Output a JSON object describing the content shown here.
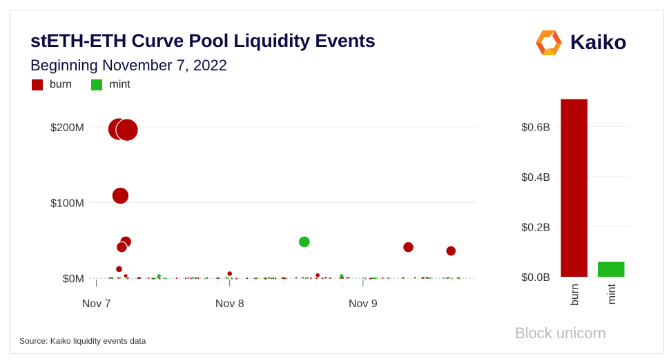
{
  "header": {
    "title": "stETH-ETH Curve Pool Liquidity Events",
    "subtitle": "Beginning November 7,  2022"
  },
  "legend": [
    {
      "label": "burn",
      "color": "#b30000"
    },
    {
      "label": "mint",
      "color": "#1fb81f"
    }
  ],
  "logo": {
    "text": "Kaiko",
    "accent": "#f7921e"
  },
  "source": "Source: Kaiko liquidity events data",
  "watermark": "Block unicorn",
  "chart_data": [
    {
      "type": "scatter",
      "title": "",
      "xlabel": "",
      "ylabel": "",
      "x_ticks": [
        "Nov 7",
        "Nov 8",
        "Nov 9"
      ],
      "y_ticks": [
        "$0M",
        "$100M",
        "$200M"
      ],
      "ylim": [
        0,
        240
      ],
      "xlim": [
        -0.05,
        2.85
      ],
      "grid": "horizontal",
      "series": [
        {
          "name": "burn",
          "color": "#b30000",
          "points": [
            {
              "x": 0.17,
              "y": 197
            },
            {
              "x": 0.23,
              "y": 196
            },
            {
              "x": 0.18,
              "y": 109
            },
            {
              "x": 0.22,
              "y": 48
            },
            {
              "x": 0.19,
              "y": 41
            },
            {
              "x": 0.17,
              "y": 12
            },
            {
              "x": 0.22,
              "y": 3
            },
            {
              "x": 1.0,
              "y": 6
            },
            {
              "x": 1.66,
              "y": 4
            },
            {
              "x": 2.34,
              "y": 41
            },
            {
              "x": 2.66,
              "y": 36
            }
          ]
        },
        {
          "name": "mint",
          "color": "#1fb81f",
          "points": [
            {
              "x": 1.56,
              "y": 48
            },
            {
              "x": 0.47,
              "y": 3
            },
            {
              "x": 1.84,
              "y": 3
            }
          ]
        }
      ]
    },
    {
      "type": "bar",
      "title": "",
      "categories": [
        "burn",
        "mint"
      ],
      "values": [
        0.71,
        0.06
      ],
      "colors": [
        "#b30000",
        "#1fb81f"
      ],
      "y_ticks": [
        "$0.0B",
        "$0.2B",
        "$0.4B",
        "$0.6B"
      ],
      "ylim": [
        0,
        0.72
      ],
      "grid": "horizontal"
    }
  ]
}
